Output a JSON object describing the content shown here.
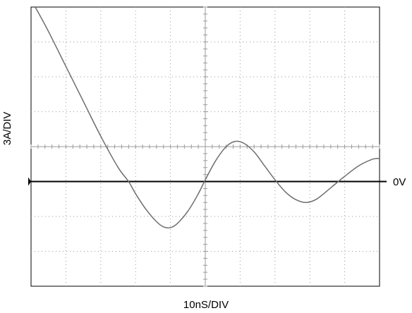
{
  "chart_data": {
    "type": "line",
    "xlabel": "10nS/DIV",
    "ylabel": "3A/DIV",
    "reference_label": "0V",
    "grid": true,
    "x_divisions": 10,
    "y_divisions": 8,
    "xlim": [
      0,
      10
    ],
    "ylim": [
      -3,
      5
    ],
    "zero_level_div": 0,
    "colors": {
      "trace": "#6e6e6e",
      "grid": "#9a9a9a",
      "axis": "#000000"
    },
    "series": [
      {
        "values_div": [
          [
            0.12,
            5.0
          ],
          [
            0.5,
            4.3
          ],
          [
            1.0,
            3.3
          ],
          [
            1.5,
            2.3
          ],
          [
            2.0,
            1.3
          ],
          [
            2.5,
            0.4
          ],
          [
            2.8,
            0.0
          ],
          [
            3.0,
            -0.35
          ],
          [
            3.3,
            -0.8
          ],
          [
            3.6,
            -1.15
          ],
          [
            3.8,
            -1.3
          ],
          [
            4.0,
            -1.32
          ],
          [
            4.2,
            -1.2
          ],
          [
            4.5,
            -0.85
          ],
          [
            4.8,
            -0.35
          ],
          [
            5.0,
            0.05
          ],
          [
            5.3,
            0.6
          ],
          [
            5.6,
            1.0
          ],
          [
            5.85,
            1.15
          ],
          [
            6.1,
            1.1
          ],
          [
            6.4,
            0.85
          ],
          [
            6.7,
            0.45
          ],
          [
            7.0,
            0.05
          ],
          [
            7.3,
            -0.3
          ],
          [
            7.6,
            -0.52
          ],
          [
            7.9,
            -0.6
          ],
          [
            8.2,
            -0.5
          ],
          [
            8.6,
            -0.18
          ],
          [
            9.0,
            0.15
          ],
          [
            9.4,
            0.45
          ],
          [
            9.8,
            0.64
          ],
          [
            10.0,
            0.66
          ]
        ]
      }
    ]
  }
}
